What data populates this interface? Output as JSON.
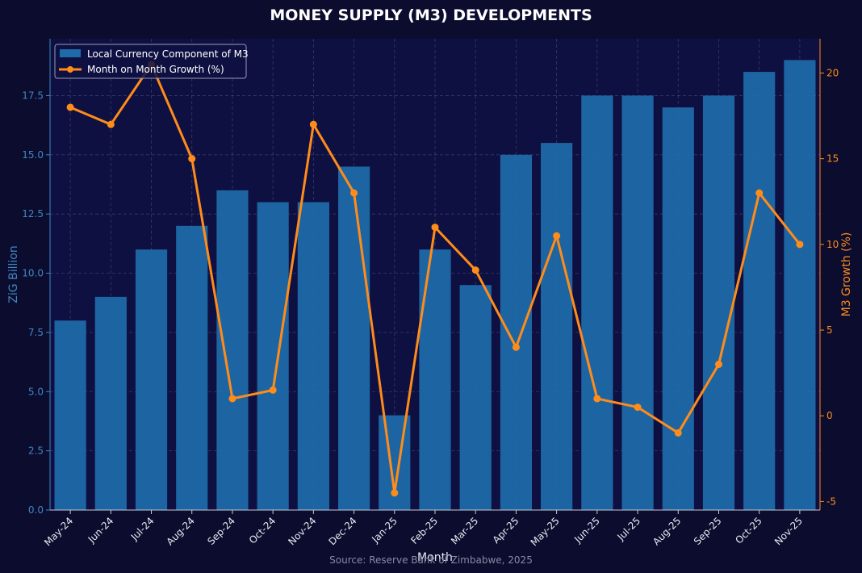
{
  "chart_data": {
    "type": "bar",
    "title": "MONEY SUPPLY (M3) DEVELOPMENTS",
    "xlabel": "Month",
    "ylabel": "ZiG Billion",
    "ylabel_right": "M3 Growth (%)",
    "source": "Source: Reserve Bank of Zimbabwe, 2025",
    "categories": [
      "May-24",
      "Jun-24",
      "Jul-24",
      "Aug-24",
      "Sep-24",
      "Oct-24",
      "Nov-24",
      "Dec-24",
      "Jan-25",
      "Feb-25",
      "Mar-25",
      "Apr-25",
      "May-25",
      "Jun-25",
      "Jul-25",
      "Aug-25",
      "Sep-25",
      "Oct-25",
      "Nov-25"
    ],
    "series": [
      {
        "name": "Local Currency Component of M3",
        "type": "bar",
        "axis": "left",
        "color": "#1f6aa8",
        "values": [
          8.0,
          9.0,
          11.0,
          12.0,
          13.5,
          13.0,
          13.0,
          14.5,
          4.0,
          11.0,
          9.5,
          15.0,
          15.5,
          17.5,
          17.5,
          17.0,
          17.5,
          18.5,
          19.0
        ]
      },
      {
        "name": "Month on Month Growth (%)",
        "type": "line",
        "axis": "right",
        "color": "#ff8c1a",
        "values": [
          18.0,
          17.0,
          20.5,
          15.0,
          1.0,
          1.5,
          17.0,
          13.0,
          -4.5,
          11.0,
          8.5,
          4.0,
          10.5,
          1.0,
          0.5,
          -1.0,
          3.0,
          13.0,
          10.0
        ]
      }
    ],
    "ylim": [
      0,
      19.9
    ],
    "ylim_right": [
      -5.5,
      22.0
    ],
    "yticks": [
      "0.0",
      "2.5",
      "5.0",
      "7.5",
      "10.0",
      "12.5",
      "15.0",
      "17.5"
    ],
    "yticks_right": [
      "-5",
      "0",
      "5",
      "10",
      "15",
      "20"
    ],
    "grid": true,
    "legend_position": "top-left"
  }
}
